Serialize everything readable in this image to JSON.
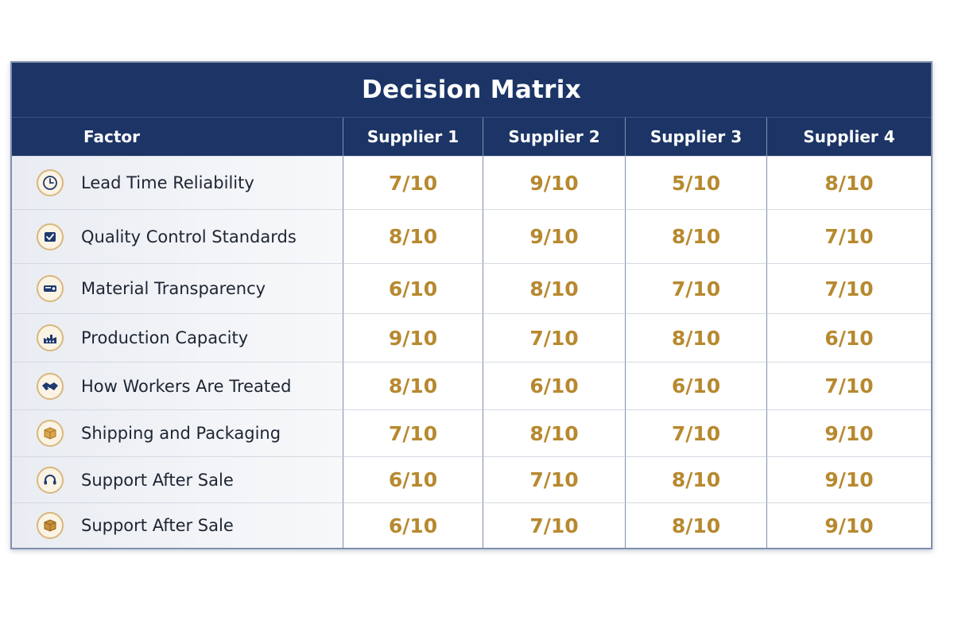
{
  "title": "Decision Matrix",
  "header": {
    "factor": "Factor",
    "suppliers": [
      "Supplier 1",
      "Supplier 2",
      "Supplier 3",
      "Supplier 4"
    ]
  },
  "rows": [
    {
      "factor": "Lead Time Reliability",
      "icon": "clock-icon",
      "scores": [
        "7/10",
        "9/10",
        "5/10",
        "8/10"
      ]
    },
    {
      "factor": "Quality Control Standards",
      "icon": "checkbox-icon",
      "scores": [
        "8/10",
        "9/10",
        "8/10",
        "7/10"
      ]
    },
    {
      "factor": "Material Transparency",
      "icon": "material-tag-icon",
      "scores": [
        "6/10",
        "8/10",
        "7/10",
        "7/10"
      ]
    },
    {
      "factor": "Production Capacity",
      "icon": "factory-icon",
      "scores": [
        "9/10",
        "7/10",
        "8/10",
        "6/10"
      ]
    },
    {
      "factor": "How Workers Are Treated",
      "icon": "handshake-icon",
      "scores": [
        "8/10",
        "6/10",
        "6/10",
        "7/10"
      ]
    },
    {
      "factor": "Shipping and Packaging",
      "icon": "package-icon",
      "scores": [
        "7/10",
        "8/10",
        "7/10",
        "9/10"
      ]
    },
    {
      "factor": "Support After Sale",
      "icon": "headset-icon",
      "scores": [
        "6/10",
        "7/10",
        "8/10",
        "9/10"
      ]
    },
    {
      "factor": "Support After Sale",
      "icon": "box-icon",
      "scores": [
        "6/10",
        "7/10",
        "8/10",
        "9/10"
      ]
    }
  ],
  "colors": {
    "header_bg": "#1c3566",
    "score_text": "#b7892f",
    "icon_ring": "#d9b77c",
    "icon_glyph": "#1f3a6e"
  }
}
